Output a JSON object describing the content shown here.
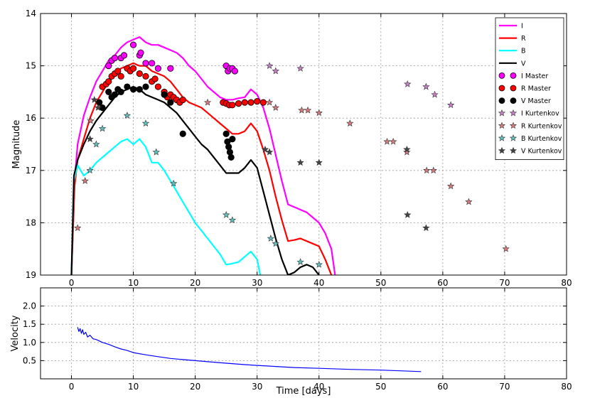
{
  "chart_data": [
    {
      "type": "line",
      "title": "",
      "xlabel": "",
      "ylabel": "Magnitude",
      "xlim": [
        -5,
        80
      ],
      "ylim": [
        19,
        14
      ],
      "y_inverted": true,
      "grid": true,
      "legend_position": "top-right",
      "x_ticks": [
        0,
        10,
        20,
        30,
        40,
        50,
        60,
        70,
        80
      ],
      "y_ticks": [
        14,
        15,
        16,
        17,
        18,
        19
      ],
      "series": [
        {
          "name": "I",
          "kind": "line",
          "color": "#ff00ff",
          "x": [
            0,
            0.5,
            1,
            2,
            3,
            4,
            5,
            6,
            7,
            8,
            9,
            10,
            11,
            12,
            13,
            14,
            15,
            16,
            17,
            18,
            19,
            20,
            21,
            22,
            23,
            24,
            25,
            26,
            27,
            28,
            29,
            30,
            31,
            32,
            33,
            34,
            35,
            36,
            37,
            38,
            39,
            40,
            41,
            42,
            42.6
          ],
          "y": [
            19,
            17.2,
            16.5,
            15.95,
            15.6,
            15.3,
            15.1,
            14.9,
            14.8,
            14.65,
            14.55,
            14.5,
            14.45,
            14.55,
            14.6,
            14.6,
            14.65,
            14.7,
            14.75,
            14.85,
            15.0,
            15.1,
            15.25,
            15.4,
            15.5,
            15.6,
            15.65,
            15.65,
            15.62,
            15.6,
            15.45,
            15.55,
            15.8,
            16.2,
            16.7,
            17.2,
            17.65,
            17.7,
            17.75,
            17.8,
            17.9,
            18.0,
            18.2,
            18.5,
            19
          ]
        },
        {
          "name": "R",
          "kind": "line",
          "color": "#ff0000",
          "x": [
            0,
            0.5,
            1,
            2,
            3,
            4,
            5,
            6,
            7,
            8,
            9,
            10,
            11,
            12,
            13,
            14,
            15,
            16,
            17,
            18,
            19,
            20,
            21,
            22,
            23,
            24,
            25,
            26,
            27,
            28,
            29,
            30,
            31,
            32,
            33,
            34,
            35,
            36,
            37,
            38,
            39,
            40,
            41,
            42
          ],
          "y": [
            19,
            17.3,
            16.8,
            16.4,
            16.0,
            15.7,
            15.5,
            15.3,
            15.15,
            15.05,
            15.0,
            14.95,
            15.0,
            15.0,
            15.1,
            15.15,
            15.2,
            15.3,
            15.45,
            15.6,
            15.7,
            15.75,
            15.8,
            15.9,
            16.0,
            16.1,
            16.2,
            16.3,
            16.3,
            16.25,
            16.1,
            16.25,
            16.6,
            17.0,
            17.5,
            17.95,
            18.35,
            18.33,
            18.3,
            18.35,
            18.4,
            18.45,
            18.7,
            19
          ]
        },
        {
          "name": "B",
          "kind": "line",
          "color": "#00ffff",
          "x": [
            0,
            0.4,
            1,
            2,
            3,
            4,
            5,
            6,
            7,
            8,
            9,
            10,
            11,
            12,
            13,
            14,
            15,
            16,
            17,
            18,
            19,
            20,
            21,
            22,
            23,
            24,
            25,
            26,
            27,
            28,
            29,
            30,
            30.5
          ],
          "y": [
            19,
            17.2,
            16.9,
            17.1,
            17.0,
            16.85,
            16.75,
            16.65,
            16.55,
            16.45,
            16.4,
            16.5,
            16.4,
            16.55,
            16.85,
            16.85,
            17.0,
            17.2,
            17.4,
            17.6,
            17.8,
            18.0,
            18.15,
            18.3,
            18.45,
            18.6,
            18.8,
            18.78,
            18.75,
            18.65,
            18.55,
            18.7,
            19
          ]
        },
        {
          "name": "V",
          "kind": "line",
          "color": "#000000",
          "x": [
            0,
            0.4,
            1,
            2,
            3,
            4,
            5,
            6,
            7,
            8,
            9,
            10,
            11,
            12,
            13,
            14,
            15,
            16,
            17,
            18,
            19,
            20,
            21,
            22,
            23,
            24,
            25,
            26,
            27,
            28,
            29,
            30,
            31,
            32,
            33,
            34,
            35,
            36,
            37,
            38,
            39,
            40
          ],
          "y": [
            19,
            17.1,
            16.8,
            16.5,
            16.25,
            16.05,
            15.9,
            15.75,
            15.6,
            15.5,
            15.45,
            15.4,
            15.45,
            15.55,
            15.6,
            15.65,
            15.7,
            15.8,
            15.9,
            16.05,
            16.2,
            16.35,
            16.5,
            16.6,
            16.75,
            16.9,
            17.05,
            17.05,
            17.05,
            16.95,
            16.8,
            16.95,
            17.4,
            17.85,
            18.3,
            18.7,
            19.0,
            18.95,
            18.85,
            18.8,
            18.85,
            19
          ]
        },
        {
          "name": "I Master",
          "kind": "points",
          "marker": "circle",
          "color": "#ff00ff",
          "x": [
            6,
            6.5,
            7,
            8,
            8.5,
            10,
            11,
            11.2,
            12,
            13,
            14,
            16,
            25,
            25.3,
            25.6,
            26,
            26.4
          ],
          "y": [
            15.0,
            14.9,
            14.85,
            14.85,
            14.8,
            14.6,
            14.8,
            14.75,
            14.95,
            14.95,
            15.05,
            15.05,
            15.0,
            15.1,
            15.05,
            15.05,
            15.1
          ]
        },
        {
          "name": "R Master",
          "kind": "points",
          "marker": "circle",
          "color": "#ff0000",
          "x": [
            5,
            5.6,
            6,
            6.5,
            7,
            7.5,
            8,
            9,
            9.5,
            10,
            11,
            12,
            13,
            13.5,
            14,
            15,
            15.5,
            16,
            16.5,
            17,
            17.5,
            18,
            24.5,
            25,
            25.5,
            26,
            27,
            28,
            29,
            30,
            31
          ],
          "y": [
            15.4,
            15.35,
            15.3,
            15.2,
            15.15,
            15.1,
            15.2,
            15.05,
            15.1,
            15.05,
            15.15,
            15.2,
            15.3,
            15.25,
            15.4,
            15.5,
            15.6,
            15.55,
            15.6,
            15.65,
            15.7,
            15.65,
            15.7,
            15.72,
            15.75,
            15.75,
            15.72,
            15.7,
            15.7,
            15.68,
            15.7
          ]
        },
        {
          "name": "V Master",
          "kind": "points",
          "marker": "circle",
          "color": "#000000",
          "x": [
            4.5,
            5,
            6,
            6.5,
            7,
            7.5,
            8,
            9,
            10,
            11,
            12,
            15,
            16,
            18,
            25,
            25.2,
            25.4,
            25.6,
            25.8,
            26
          ],
          "y": [
            15.7,
            15.8,
            15.5,
            15.6,
            15.55,
            15.45,
            15.5,
            15.4,
            15.45,
            15.45,
            15.4,
            15.55,
            15.7,
            16.3,
            16.3,
            16.45,
            16.55,
            16.65,
            16.75,
            16.4
          ]
        },
        {
          "name": "I Kurtenkov",
          "kind": "points",
          "marker": "star",
          "color": "#c77dc7",
          "x": [
            32,
            33,
            37,
            54.3,
            57.3,
            58.7,
            61.3
          ],
          "y": [
            15.0,
            15.1,
            15.05,
            15.35,
            15.4,
            15.55,
            15.75
          ]
        },
        {
          "name": "R Kurtenkov",
          "kind": "points",
          "marker": "star",
          "color": "#d67a7a",
          "x": [
            1,
            2.2,
            3.1,
            22,
            32,
            33,
            37.2,
            38.2,
            40,
            45,
            51,
            52,
            54.2,
            57.4,
            58.5,
            61.3,
            64.2,
            70.2
          ],
          "y": [
            18.1,
            17.2,
            16.05,
            15.7,
            15.7,
            15.8,
            15.85,
            15.85,
            15.9,
            16.1,
            16.45,
            16.45,
            16.65,
            17.0,
            17.0,
            17.3,
            17.6,
            18.5
          ]
        },
        {
          "name": "B Kurtenkov",
          "kind": "points",
          "marker": "star",
          "color": "#5fbfbf",
          "x": [
            3,
            4,
            5,
            9,
            12,
            13.7,
            16.5,
            25,
            26,
            32.2,
            33,
            37,
            40
          ],
          "y": [
            17.0,
            16.5,
            16.2,
            15.95,
            16.1,
            16.65,
            17.25,
            17.85,
            17.95,
            18.3,
            18.4,
            18.75,
            18.8
          ]
        },
        {
          "name": "V Kurtenkov",
          "kind": "points",
          "marker": "star",
          "color": "#444444",
          "x": [
            3,
            3.7,
            4.3,
            31.3,
            32,
            37,
            40,
            54.2,
            54.3,
            57.3
          ],
          "y": [
            16.4,
            15.65,
            15.8,
            16.6,
            16.65,
            16.85,
            16.85,
            16.6,
            17.85,
            18.1
          ]
        }
      ]
    },
    {
      "type": "line",
      "title": "",
      "xlabel": "Time [days]",
      "ylabel": "Velocity",
      "xlim": [
        -5,
        80
      ],
      "ylim": [
        0,
        2.5
      ],
      "grid": true,
      "x_ticks": [
        0,
        10,
        20,
        30,
        40,
        50,
        60,
        70,
        80
      ],
      "y_ticks": [
        0.5,
        1.0,
        1.5,
        2.0
      ],
      "y_tick_labels": [
        "0.5",
        "1.0",
        "1.5",
        "2.0"
      ],
      "series": [
        {
          "name": "Velocity",
          "kind": "line",
          "color": "#0000ff",
          "x": [
            1,
            1.2,
            1.4,
            1.6,
            1.8,
            2,
            2.3,
            2.6,
            3,
            3.5,
            4,
            5,
            6,
            7,
            8,
            9,
            10,
            12,
            14,
            16,
            18,
            20,
            22,
            25,
            28,
            30,
            33,
            36,
            40,
            45,
            50,
            56.5
          ],
          "y": [
            1.42,
            1.3,
            1.38,
            1.25,
            1.35,
            1.22,
            1.28,
            1.15,
            1.2,
            1.1,
            1.08,
            1.0,
            0.95,
            0.88,
            0.82,
            0.78,
            0.72,
            0.66,
            0.61,
            0.56,
            0.53,
            0.5,
            0.47,
            0.43,
            0.39,
            0.37,
            0.34,
            0.31,
            0.29,
            0.26,
            0.24,
            0.2
          ]
        }
      ]
    }
  ]
}
